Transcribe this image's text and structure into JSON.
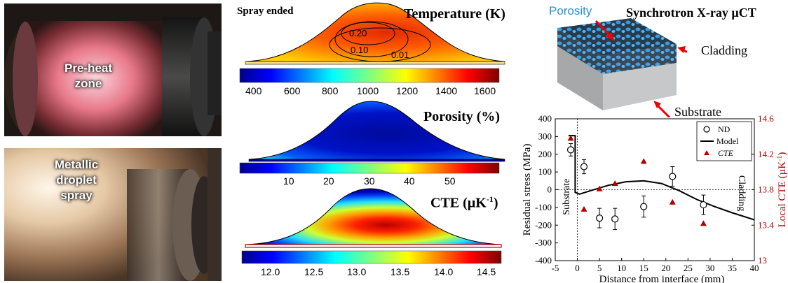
{
  "photos": {
    "preheat": {
      "label_line1": "Pre-heat",
      "label_line2": "zone"
    },
    "spray": {
      "label_line1": "Metallic",
      "label_line2": "droplet",
      "label_line3": "spray"
    }
  },
  "panels": {
    "temperature": {
      "status": "Spray ended",
      "title": "Temperature (K)",
      "contours": [
        "0.20",
        "0.10",
        "0.01"
      ],
      "ticks": [
        "400",
        "600",
        "800",
        "1000",
        "1200",
        "1400",
        "1600"
      ]
    },
    "porosity": {
      "title": "Porosity (%)",
      "ticks": [
        "10",
        "20",
        "30",
        "40",
        "50"
      ]
    },
    "cte": {
      "title_main": "CTE (µK",
      "title_exp": "-1",
      "title_close": ")",
      "ticks": [
        "12.0",
        "12.5",
        "13.0",
        "13.5",
        "14.0",
        "14.5"
      ]
    }
  },
  "xct": {
    "title": "Synchrotron X-ray µCT",
    "label_porosity": "Porosity",
    "label_cladding": "Cladding",
    "label_substrate": "Substrate"
  },
  "chart_data": {
    "type": "scatter",
    "xlabel": "Distance from interface (mm)",
    "ylabel": "Residual stress (MPa)",
    "y2label_main": "Local CTE (µK",
    "y2label_exp": "-1",
    "y2label_close": ")",
    "xlim": [
      -5,
      40
    ],
    "ylim": [
      -400,
      400
    ],
    "y2lim": [
      13,
      14.6
    ],
    "xticks": [
      "-5",
      "0",
      "5",
      "10",
      "15",
      "20",
      "25",
      "30",
      "35",
      "40"
    ],
    "yticks": [
      "400",
      "300",
      "200",
      "100",
      "0",
      "-100",
      "-200",
      "-300",
      "-400"
    ],
    "y2ticks": [
      "14.6",
      "14.2",
      "13.8",
      "13.4",
      "13"
    ],
    "region_left": "Substrate",
    "region_right": "Cladding",
    "legend": {
      "nd": "ND",
      "model": "Model",
      "cte": "CTE"
    },
    "nd_points": [
      {
        "x": -1.5,
        "y": 225,
        "err": 35
      },
      {
        "x": 1.5,
        "y": 130,
        "err": 40
      },
      {
        "x": 5,
        "y": -160,
        "err": 55
      },
      {
        "x": 8.5,
        "y": -165,
        "err": 60
      },
      {
        "x": 15,
        "y": -95,
        "err": 60
      },
      {
        "x": 21.5,
        "y": 75,
        "err": 55
      },
      {
        "x": 28.5,
        "y": -85,
        "err": 55
      }
    ],
    "cte_points": [
      {
        "x": -1.5,
        "y": 14.38
      },
      {
        "x": 1.5,
        "y": 13.58
      },
      {
        "x": 5,
        "y": 13.81
      },
      {
        "x": 8.5,
        "y": 13.87
      },
      {
        "x": 15,
        "y": 14.12
      },
      {
        "x": 21.5,
        "y": 13.66
      },
      {
        "x": 28.5,
        "y": 13.42
      }
    ],
    "model_line": [
      {
        "x": -2,
        "y": 305
      },
      {
        "x": -0.5,
        "y": 305
      },
      {
        "x": -0.5,
        "y": -15
      },
      {
        "x": 0.5,
        "y": -25
      },
      {
        "x": 3,
        "y": -5
      },
      {
        "x": 7,
        "y": 25
      },
      {
        "x": 11,
        "y": 45
      },
      {
        "x": 15,
        "y": 50
      },
      {
        "x": 19,
        "y": 35
      },
      {
        "x": 23,
        "y": -5
      },
      {
        "x": 27,
        "y": -55
      },
      {
        "x": 31,
        "y": -95
      },
      {
        "x": 35,
        "y": -130
      },
      {
        "x": 40,
        "y": -170
      }
    ]
  }
}
